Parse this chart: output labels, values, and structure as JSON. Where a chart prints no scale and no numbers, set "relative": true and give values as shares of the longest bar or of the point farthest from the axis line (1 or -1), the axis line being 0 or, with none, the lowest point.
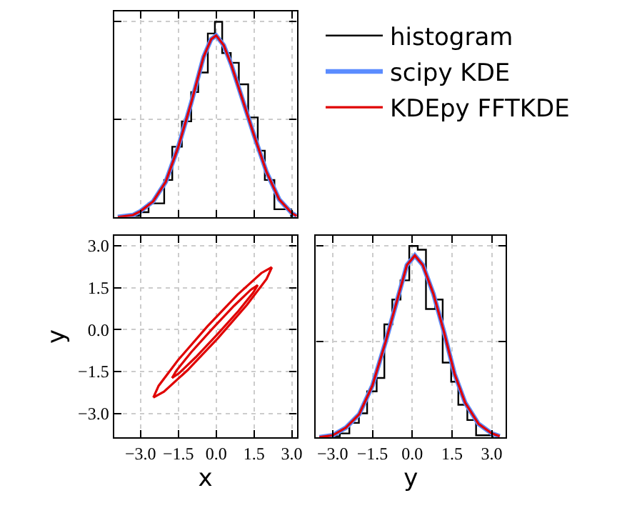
{
  "chart_data": [
    {
      "type": "histogram",
      "relative": true,
      "xlim": [
        -4.05,
        3.2
      ],
      "xticks": [
        {
          "value": -3,
          "label": null
        },
        {
          "value": -1.5,
          "label": null
        },
        {
          "value": 0,
          "label": null
        },
        {
          "value": 1.5,
          "label": null
        },
        {
          "value": 3,
          "label": null
        }
      ],
      "tick_labels": false,
      "grid": true,
      "legend": "right",
      "series": [
        {
          "type": "histogram",
          "name": "histogram",
          "color": "#000000",
          "bins": [
            -3.76,
            -3.06,
            -2.68,
            -2.06,
            -1.74,
            -1.36,
            -0.99,
            -0.71,
            -0.33,
            -0.05,
            0.24,
            0.58,
            0.9,
            1.27,
            1.65,
            1.93,
            2.31,
            2.97
          ],
          "values": [
            0.005,
            0.025,
            0.07,
            0.19,
            0.36,
            0.49,
            0.64,
            0.74,
            0.94,
            1.0,
            0.84,
            0.79,
            0.68,
            0.51,
            0.34,
            0.19,
            0.04
          ]
        },
        {
          "type": "line",
          "name": "scipy KDE",
          "color": "#5b8cff",
          "x": [
            -3.9,
            -3.3,
            -3.0,
            -2.5,
            -2.0,
            -1.5,
            -1.0,
            -0.5,
            -0.2,
            0.0,
            0.3,
            0.6,
            1.0,
            1.5,
            2.0,
            2.5,
            3.0,
            3.2
          ],
          "values": [
            0.0,
            0.01,
            0.03,
            0.08,
            0.18,
            0.36,
            0.58,
            0.82,
            0.91,
            0.93,
            0.88,
            0.78,
            0.62,
            0.42,
            0.23,
            0.09,
            0.02,
            0.005
          ]
        },
        {
          "type": "line",
          "name": "KDEpy FFTKDE",
          "color": "#e00000",
          "x": [
            -3.9,
            -3.3,
            -3.0,
            -2.5,
            -2.0,
            -1.5,
            -1.0,
            -0.5,
            -0.2,
            0.0,
            0.3,
            0.6,
            1.0,
            1.5,
            2.0,
            2.5,
            3.0,
            3.2
          ],
          "values": [
            0.0,
            0.01,
            0.03,
            0.08,
            0.18,
            0.36,
            0.58,
            0.82,
            0.91,
            0.93,
            0.88,
            0.78,
            0.62,
            0.42,
            0.23,
            0.09,
            0.02,
            0.005
          ]
        }
      ]
    },
    {
      "type": "line",
      "xlabel": "x",
      "ylabel": "y",
      "xlim": [
        -4.05,
        3.2
      ],
      "xticks": [
        {
          "value": -3,
          "label": "−3.0"
        },
        {
          "value": -1.5,
          "label": "−1.5"
        },
        {
          "value": 0,
          "label": "0.0"
        },
        {
          "value": 1.5,
          "label": "1.5"
        },
        {
          "value": 3,
          "label": "3.0"
        }
      ],
      "ylim": [
        -3.85,
        3.35
      ],
      "yticks": [
        {
          "value": -3,
          "label": "−3.0"
        },
        {
          "value": -1.5,
          "label": "−1.5"
        },
        {
          "value": 0,
          "label": "0.0"
        },
        {
          "value": 1.5,
          "label": "1.5"
        },
        {
          "value": 3,
          "label": "3.0"
        }
      ],
      "grid": true,
      "series": [
        {
          "color": "#e00000",
          "x": [
            -2.49,
            -2.28,
            -1.5,
            -0.35,
            0.85,
            1.79,
            2.21
          ],
          "values": [
            -2.43,
            -2.01,
            -1.08,
            0.11,
            1.25,
            2.02,
            2.23
          ]
        },
        {
          "color": "#e00000",
          "x": [
            -2.49,
            -2.07,
            -1.13,
            0.07,
            1.22,
            2.0,
            2.21
          ],
          "values": [
            -2.43,
            -2.22,
            -1.45,
            -0.31,
            0.88,
            1.81,
            2.23
          ]
        },
        {
          "color": "#e00000",
          "x": [
            -1.75,
            -1.57,
            -0.99,
            -0.15,
            0.71,
            1.37,
            1.65
          ],
          "values": [
            -1.73,
            -1.46,
            -0.81,
            0.03,
            0.85,
            1.42,
            1.59
          ]
        },
        {
          "color": "#e00000",
          "x": [
            -1.75,
            -1.47,
            -0.81,
            0.05,
            0.89,
            1.47,
            1.65
          ],
          "values": [
            -1.73,
            -1.56,
            -0.99,
            -0.17,
            0.67,
            1.32,
            1.59
          ]
        }
      ]
    },
    {
      "type": "histogram",
      "relative": true,
      "xlabel": "y",
      "xlim": [
        -3.63,
        3.53
      ],
      "xticks": [
        {
          "value": -3,
          "label": "−3.0"
        },
        {
          "value": -1.5,
          "label": "−1.5"
        },
        {
          "value": 0,
          "label": "0.0"
        },
        {
          "value": 1.5,
          "label": "1.5"
        },
        {
          "value": 3,
          "label": "3.0"
        }
      ],
      "tick_labels": "x",
      "grid": true,
      "series": [
        {
          "type": "histogram",
          "color": "#000000",
          "bins": [
            -3.36,
            -2.73,
            -2.37,
            -2.01,
            -1.7,
            -1.34,
            -1.05,
            -0.75,
            -0.44,
            -0.11,
            0.21,
            0.52,
            0.87,
            1.15,
            1.47,
            1.74,
            2.08,
            2.41,
            3.04
          ],
          "values": [
            0.005,
            0.02,
            0.075,
            0.125,
            0.24,
            0.31,
            0.59,
            0.72,
            0.82,
            1.0,
            0.98,
            0.67,
            0.72,
            0.39,
            0.29,
            0.17,
            0.09,
            0.01
          ]
        },
        {
          "type": "line",
          "color": "#5b8cff",
          "x": [
            -3.5,
            -3.0,
            -2.5,
            -2.0,
            -1.5,
            -1.0,
            -0.5,
            -0.2,
            0.1,
            0.4,
            0.8,
            1.2,
            1.6,
            2.0,
            2.5,
            3.0,
            3.3
          ],
          "values": [
            0.0,
            0.01,
            0.05,
            0.12,
            0.27,
            0.5,
            0.75,
            0.9,
            0.95,
            0.9,
            0.75,
            0.55,
            0.33,
            0.18,
            0.07,
            0.02,
            0.005
          ]
        },
        {
          "type": "line",
          "color": "#e00000",
          "x": [
            -3.5,
            -3.0,
            -2.5,
            -2.0,
            -1.5,
            -1.0,
            -0.5,
            -0.2,
            0.1,
            0.4,
            0.8,
            1.2,
            1.6,
            2.0,
            2.5,
            3.0,
            3.3
          ],
          "values": [
            0.0,
            0.01,
            0.05,
            0.12,
            0.27,
            0.5,
            0.75,
            0.9,
            0.95,
            0.9,
            0.75,
            0.55,
            0.33,
            0.18,
            0.07,
            0.02,
            0.005
          ]
        }
      ]
    }
  ]
}
